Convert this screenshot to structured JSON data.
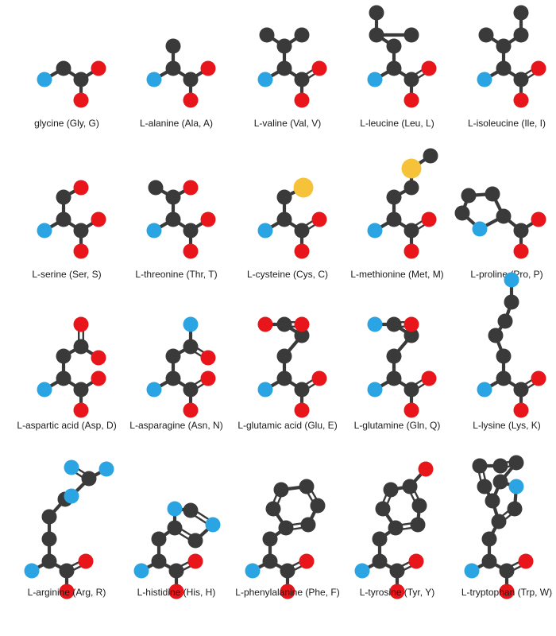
{
  "palette": {
    "carbon": "#3a3a3a",
    "nitrogen": "#2aa4e3",
    "oxygen": "#e8161a",
    "sulfur": "#f5c23a",
    "bond": "#3a3a3a",
    "background": "#ffffff"
  },
  "amino_acids": [
    {
      "label": "glycine (Gly, G)",
      "atoms": [
        "C",
        "C",
        "N",
        "O",
        "O"
      ]
    },
    {
      "label": "L-alanine (Ala, A)",
      "atoms": [
        "C",
        "C",
        "C",
        "N",
        "O",
        "O"
      ]
    },
    {
      "label": "L-valine (Val, V)",
      "atoms": [
        "C",
        "C",
        "C",
        "C",
        "C",
        "N",
        "O",
        "O"
      ]
    },
    {
      "label": "L-leucine (Leu, L)",
      "atoms": [
        "C",
        "C",
        "C",
        "C",
        "C",
        "C",
        "N",
        "O",
        "O"
      ]
    },
    {
      "label": "L-isoleucine (Ile, I)",
      "atoms": [
        "C",
        "C",
        "C",
        "C",
        "C",
        "C",
        "N",
        "O",
        "O"
      ]
    },
    {
      "label": "L-serine (Ser, S)",
      "atoms": [
        "C",
        "C",
        "C",
        "N",
        "O",
        "O",
        "O"
      ]
    },
    {
      "label": "L-threonine (Thr, T)",
      "atoms": [
        "C",
        "C",
        "C",
        "C",
        "N",
        "O",
        "O",
        "O"
      ]
    },
    {
      "label": "L-cysteine (Cys, C)",
      "atoms": [
        "C",
        "C",
        "C",
        "N",
        "O",
        "O",
        "S"
      ]
    },
    {
      "label": "L-methionine (Met, M)",
      "atoms": [
        "C",
        "C",
        "C",
        "C",
        "C",
        "N",
        "O",
        "O",
        "S"
      ]
    },
    {
      "label": "L-proline (Pro, P)",
      "atoms": [
        "C",
        "C",
        "C",
        "C",
        "C",
        "N",
        "O",
        "O"
      ]
    },
    {
      "label": "L-aspartic acid (Asp, D)",
      "atoms": [
        "C",
        "C",
        "C",
        "C",
        "N",
        "O",
        "O",
        "O",
        "O"
      ]
    },
    {
      "label": "L-asparagine (Asn, N)",
      "atoms": [
        "C",
        "C",
        "C",
        "C",
        "N",
        "N",
        "O",
        "O",
        "O"
      ]
    },
    {
      "label": "L-glutamic acid (Glu, E)",
      "atoms": [
        "C",
        "C",
        "C",
        "C",
        "C",
        "N",
        "O",
        "O",
        "O",
        "O"
      ]
    },
    {
      "label": "L-glutamine (Gln, Q)",
      "atoms": [
        "C",
        "C",
        "C",
        "C",
        "C",
        "N",
        "N",
        "O",
        "O",
        "O"
      ]
    },
    {
      "label": "L-lysine (Lys, K)",
      "atoms": [
        "C",
        "C",
        "C",
        "C",
        "C",
        "C",
        "N",
        "N",
        "O",
        "O"
      ]
    },
    {
      "label": "L-arginine (Arg, R)",
      "atoms": [
        "C",
        "C",
        "C",
        "C",
        "C",
        "C",
        "N",
        "N",
        "N",
        "N",
        "O",
        "O"
      ]
    },
    {
      "label": "L-histidine (His, H)",
      "atoms": [
        "C",
        "C",
        "C",
        "C",
        "C",
        "C",
        "N",
        "N",
        "N",
        "O",
        "O"
      ]
    },
    {
      "label": "L-phenylalanine (Phe, F)",
      "atoms": [
        "C",
        "C",
        "C",
        "C",
        "C",
        "C",
        "C",
        "C",
        "C",
        "N",
        "O",
        "O"
      ]
    },
    {
      "label": "L-tyrosine (Tyr, Y)",
      "atoms": [
        "C",
        "C",
        "C",
        "C",
        "C",
        "C",
        "C",
        "C",
        "C",
        "N",
        "O",
        "O",
        "O"
      ]
    },
    {
      "label": "L-tryptophan (Trp, W)",
      "atoms": [
        "C",
        "C",
        "C",
        "C",
        "C",
        "C",
        "C",
        "C",
        "C",
        "C",
        "C",
        "N",
        "N",
        "O",
        "O"
      ]
    }
  ]
}
